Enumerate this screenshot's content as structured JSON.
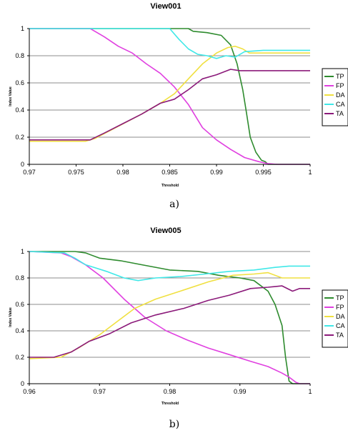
{
  "chart_data": [
    {
      "type": "line",
      "title": "View001",
      "xlabel": "Threshold",
      "ylabel": "Index Value",
      "xlim": [
        0.97,
        1.0
      ],
      "ylim": [
        0,
        1
      ],
      "xticks": [
        "0.97",
        "0.975",
        "0.98",
        "0.985",
        "0.99",
        "0.995",
        "1"
      ],
      "yticks": [
        "0",
        "0.2",
        "0.4",
        "0.6",
        "0.8",
        "1"
      ],
      "grid": "horizontal",
      "legend_position": "right",
      "caption": "a)",
      "series": [
        {
          "name": "TP",
          "color": "#2e8b2e",
          "points": [
            [
              0.97,
              1
            ],
            [
              0.987,
              1
            ],
            [
              0.9875,
              0.98
            ],
            [
              0.989,
              0.97
            ],
            [
              0.9905,
              0.95
            ],
            [
              0.9915,
              0.88
            ],
            [
              0.9922,
              0.74
            ],
            [
              0.9928,
              0.55
            ],
            [
              0.9932,
              0.38
            ],
            [
              0.9936,
              0.2
            ],
            [
              0.9942,
              0.09
            ],
            [
              0.9948,
              0.03
            ],
            [
              0.9952,
              0.02
            ],
            [
              0.9955,
              0
            ],
            [
              1,
              0
            ]
          ]
        },
        {
          "name": "FP",
          "color": "#e040e0",
          "points": [
            [
              0.97,
              1
            ],
            [
              0.9765,
              1
            ],
            [
              0.978,
              0.94
            ],
            [
              0.9795,
              0.87
            ],
            [
              0.981,
              0.82
            ],
            [
              0.9825,
              0.74
            ],
            [
              0.984,
              0.67
            ],
            [
              0.9855,
              0.57
            ],
            [
              0.987,
              0.44
            ],
            [
              0.9885,
              0.27
            ],
            [
              0.99,
              0.18
            ],
            [
              0.9915,
              0.11
            ],
            [
              0.993,
              0.05
            ],
            [
              0.9945,
              0.02
            ],
            [
              0.9955,
              0.005
            ],
            [
              0.9965,
              0
            ],
            [
              1,
              0
            ]
          ]
        },
        {
          "name": "DA",
          "color": "#f0e040",
          "points": [
            [
              0.97,
              0.17
            ],
            [
              0.976,
              0.17
            ],
            [
              0.977,
              0.19
            ],
            [
              0.9795,
              0.28
            ],
            [
              0.982,
              0.37
            ],
            [
              0.984,
              0.45
            ],
            [
              0.9855,
              0.52
            ],
            [
              0.987,
              0.63
            ],
            [
              0.9885,
              0.74
            ],
            [
              0.99,
              0.82
            ],
            [
              0.9912,
              0.86
            ],
            [
              0.992,
              0.87
            ],
            [
              0.9928,
              0.85
            ],
            [
              0.9935,
              0.82
            ],
            [
              0.995,
              0.82
            ],
            [
              1,
              0.82
            ]
          ]
        },
        {
          "name": "CA",
          "color": "#40e8e8",
          "points": [
            [
              0.97,
              1
            ],
            [
              0.985,
              1
            ],
            [
              0.986,
              0.92
            ],
            [
              0.987,
              0.85
            ],
            [
              0.988,
              0.81
            ],
            [
              0.989,
              0.8
            ],
            [
              0.99,
              0.78
            ],
            [
              0.991,
              0.8
            ],
            [
              0.992,
              0.79
            ],
            [
              0.993,
              0.83
            ],
            [
              0.995,
              0.84
            ],
            [
              1,
              0.84
            ]
          ]
        },
        {
          "name": "TA",
          "color": "#8b1a7a",
          "points": [
            [
              0.97,
              0.18
            ],
            [
              0.9765,
              0.18
            ],
            [
              0.978,
              0.23
            ],
            [
              0.98,
              0.3
            ],
            [
              0.982,
              0.37
            ],
            [
              0.984,
              0.45
            ],
            [
              0.9855,
              0.48
            ],
            [
              0.987,
              0.55
            ],
            [
              0.9885,
              0.63
            ],
            [
              0.99,
              0.66
            ],
            [
              0.9915,
              0.7
            ],
            [
              0.9925,
              0.69
            ],
            [
              0.9935,
              0.69
            ],
            [
              1,
              0.69
            ]
          ]
        }
      ]
    },
    {
      "type": "line",
      "title": "View005",
      "xlabel": "Threshold",
      "ylabel": "Index Value",
      "xlim": [
        0.96,
        1.0
      ],
      "ylim": [
        0,
        1
      ],
      "xticks": [
        "0.96",
        "0.97",
        "0.98",
        "0.99",
        "1"
      ],
      "yticks": [
        "0",
        "0.2",
        "0.4",
        "0.6",
        "0.8",
        "1"
      ],
      "grid": "horizontal",
      "legend_position": "right",
      "caption": "b)",
      "series": [
        {
          "name": "TP",
          "color": "#2e8b2e",
          "points": [
            [
              0.96,
              1
            ],
            [
              0.9665,
              1
            ],
            [
              0.968,
              0.99
            ],
            [
              0.97,
              0.95
            ],
            [
              0.973,
              0.93
            ],
            [
              0.976,
              0.9
            ],
            [
              0.98,
              0.86
            ],
            [
              0.984,
              0.85
            ],
            [
              0.987,
              0.82
            ],
            [
              0.99,
              0.8
            ],
            [
              0.992,
              0.78
            ],
            [
              0.994,
              0.7
            ],
            [
              0.995,
              0.6
            ],
            [
              0.996,
              0.44
            ],
            [
              0.9965,
              0.2
            ],
            [
              0.997,
              0.02
            ],
            [
              0.9975,
              0
            ],
            [
              1,
              0
            ]
          ]
        },
        {
          "name": "FP",
          "color": "#e040e0",
          "points": [
            [
              0.96,
              1
            ],
            [
              0.9645,
              0.99
            ],
            [
              0.966,
              0.96
            ],
            [
              0.968,
              0.9
            ],
            [
              0.9705,
              0.8
            ],
            [
              0.9735,
              0.64
            ],
            [
              0.9765,
              0.5
            ],
            [
              0.9795,
              0.4
            ],
            [
              0.9825,
              0.33
            ],
            [
              0.9855,
              0.27
            ],
            [
              0.9885,
              0.22
            ],
            [
              0.9915,
              0.17
            ],
            [
              0.994,
              0.13
            ],
            [
              0.996,
              0.08
            ],
            [
              0.997,
              0.05
            ],
            [
              0.998,
              0.01
            ],
            [
              0.9985,
              0
            ],
            [
              1,
              0
            ]
          ]
        },
        {
          "name": "DA",
          "color": "#f0e040",
          "points": [
            [
              0.96,
              0.19
            ],
            [
              0.9645,
              0.2
            ],
            [
              0.967,
              0.27
            ],
            [
              0.97,
              0.37
            ],
            [
              0.9725,
              0.47
            ],
            [
              0.975,
              0.57
            ],
            [
              0.978,
              0.64
            ],
            [
              0.9815,
              0.7
            ],
            [
              0.9855,
              0.77
            ],
            [
              0.989,
              0.82
            ],
            [
              0.992,
              0.83
            ],
            [
              0.994,
              0.84
            ],
            [
              0.996,
              0.8
            ],
            [
              1,
              0.8
            ]
          ]
        },
        {
          "name": "CA",
          "color": "#40e8e8",
          "points": [
            [
              0.96,
              1
            ],
            [
              0.965,
              0.99
            ],
            [
              0.9665,
              0.95
            ],
            [
              0.968,
              0.9
            ],
            [
              0.971,
              0.85
            ],
            [
              0.9735,
              0.8
            ],
            [
              0.9755,
              0.78
            ],
            [
              0.978,
              0.8
            ],
            [
              0.9815,
              0.81
            ],
            [
              0.985,
              0.83
            ],
            [
              0.9885,
              0.85
            ],
            [
              0.992,
              0.86
            ],
            [
              0.995,
              0.88
            ],
            [
              0.997,
              0.89
            ],
            [
              1,
              0.89
            ]
          ]
        },
        {
          "name": "TA",
          "color": "#8b1a7a",
          "points": [
            [
              0.96,
              0.2
            ],
            [
              0.9635,
              0.2
            ],
            [
              0.966,
              0.24
            ],
            [
              0.9685,
              0.32
            ],
            [
              0.9715,
              0.38
            ],
            [
              0.9745,
              0.46
            ],
            [
              0.978,
              0.52
            ],
            [
              0.982,
              0.57
            ],
            [
              0.9855,
              0.63
            ],
            [
              0.9885,
              0.67
            ],
            [
              0.9915,
              0.72
            ],
            [
              0.994,
              0.73
            ],
            [
              0.996,
              0.74
            ],
            [
              0.9975,
              0.7
            ],
            [
              0.9985,
              0.72
            ],
            [
              1,
              0.72
            ]
          ]
        }
      ]
    }
  ]
}
